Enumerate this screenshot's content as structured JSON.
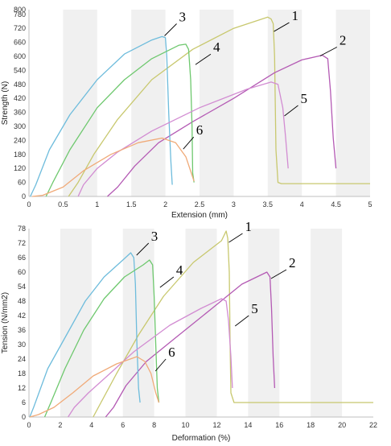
{
  "chart_data": [
    {
      "type": "line",
      "title": "",
      "xlabel": "Extension (mm)",
      "ylabel": "Strength (N)",
      "xlim": [
        0,
        5
      ],
      "ylim": [
        0,
        800
      ],
      "xticks": [
        "0",
        "0.5",
        "1",
        "1.5",
        "2",
        "2.5",
        "3",
        "3.5",
        "4",
        "4.5",
        "5"
      ],
      "yticks": [
        "0",
        "60",
        "120",
        "180",
        "240",
        "300",
        "360",
        "420",
        "480",
        "540",
        "600",
        "660",
        "720",
        "780",
        "800"
      ],
      "grid": "alternating vertical bands",
      "legend": "none",
      "series": [
        {
          "name": "1",
          "color": "#c8c86e",
          "points": [
            [
              0.58,
              0
            ],
            [
              0.72,
              60
            ],
            [
              0.95,
              180
            ],
            [
              1.3,
              330
            ],
            [
              1.8,
              500
            ],
            [
              2.4,
              630
            ],
            [
              3.0,
              720
            ],
            [
              3.5,
              768
            ],
            [
              3.55,
              760
            ],
            [
              3.58,
              740
            ],
            [
              3.6,
              600
            ],
            [
              3.62,
              200
            ],
            [
              3.65,
              60
            ],
            [
              3.7,
              55
            ],
            [
              5.0,
              55
            ]
          ]
        },
        {
          "name": "2",
          "color": "#b45ab4",
          "points": [
            [
              1.15,
              0
            ],
            [
              1.3,
              40
            ],
            [
              1.55,
              130
            ],
            [
              1.9,
              230
            ],
            [
              2.4,
              320
            ],
            [
              3.0,
              420
            ],
            [
              3.6,
              530
            ],
            [
              4.0,
              585
            ],
            [
              4.3,
              605
            ],
            [
              4.38,
              590
            ],
            [
              4.42,
              450
            ],
            [
              4.46,
              250
            ],
            [
              4.5,
              120
            ]
          ]
        },
        {
          "name": "3",
          "color": "#6ebcdc",
          "points": [
            [
              0.02,
              0
            ],
            [
              0.1,
              50
            ],
            [
              0.3,
              200
            ],
            [
              0.6,
              350
            ],
            [
              1.0,
              500
            ],
            [
              1.4,
              610
            ],
            [
              1.8,
              670
            ],
            [
              1.95,
              685
            ],
            [
              2.0,
              680
            ],
            [
              2.02,
              600
            ],
            [
              2.05,
              350
            ],
            [
              2.08,
              150
            ],
            [
              2.1,
              50
            ]
          ]
        },
        {
          "name": "4",
          "color": "#6ec86e",
          "points": [
            [
              0.25,
              0
            ],
            [
              0.35,
              60
            ],
            [
              0.6,
              200
            ],
            [
              1.0,
              380
            ],
            [
              1.4,
              500
            ],
            [
              1.8,
              590
            ],
            [
              2.2,
              648
            ],
            [
              2.3,
              652
            ],
            [
              2.34,
              630
            ],
            [
              2.37,
              500
            ],
            [
              2.39,
              300
            ],
            [
              2.4,
              100
            ],
            [
              2.42,
              60
            ]
          ]
        },
        {
          "name": "5",
          "color": "#d28cd2",
          "points": [
            [
              0.72,
              0
            ],
            [
              0.8,
              50
            ],
            [
              1.0,
              120
            ],
            [
              1.3,
              190
            ],
            [
              1.8,
              280
            ],
            [
              2.5,
              380
            ],
            [
              3.2,
              460
            ],
            [
              3.55,
              490
            ],
            [
              3.65,
              480
            ],
            [
              3.72,
              380
            ],
            [
              3.76,
              260
            ],
            [
              3.8,
              120
            ]
          ]
        },
        {
          "name": "6",
          "color": "#f0aa78",
          "points": [
            [
              0.05,
              0
            ],
            [
              0.2,
              5
            ],
            [
              0.5,
              40
            ],
            [
              0.8,
              110
            ],
            [
              1.2,
              180
            ],
            [
              1.6,
              230
            ],
            [
              1.95,
              250
            ],
            [
              2.15,
              230
            ],
            [
              2.3,
              170
            ],
            [
              2.38,
              100
            ],
            [
              2.42,
              65
            ]
          ]
        }
      ],
      "annotations": [
        {
          "text": "1",
          "x": 3.85,
          "y": 755
        },
        {
          "text": "2",
          "x": 4.55,
          "y": 650
        },
        {
          "text": "3",
          "x": 2.2,
          "y": 750
        },
        {
          "text": "4",
          "x": 2.7,
          "y": 620
        },
        {
          "text": "5",
          "x": 3.98,
          "y": 400
        },
        {
          "text": "6",
          "x": 2.45,
          "y": 265
        }
      ]
    },
    {
      "type": "line",
      "title": "",
      "xlabel": "Deformation (%)",
      "ylabel": "Tension (N/mm2)",
      "xlim": [
        0,
        22
      ],
      "ylim": [
        0,
        78
      ],
      "xticks": [
        "0",
        "2",
        "4",
        "6",
        "8",
        "10",
        "12",
        "14",
        "16",
        "18",
        "20",
        "22"
      ],
      "yticks": [
        "0",
        "6",
        "12",
        "18",
        "24",
        "30",
        "36",
        "42",
        "48",
        "54",
        "60",
        "66",
        "72",
        "78"
      ],
      "grid": "alternating vertical bands",
      "legend": "none",
      "series": [
        {
          "name": "1",
          "color": "#c8c86e",
          "points": [
            [
              4.1,
              0
            ],
            [
              4.6,
              6
            ],
            [
              5.6,
              18
            ],
            [
              7.0,
              34
            ],
            [
              8.6,
              50
            ],
            [
              10.5,
              64
            ],
            [
              12.3,
              73
            ],
            [
              12.6,
              77
            ],
            [
              12.7,
              74
            ],
            [
              12.8,
              60
            ],
            [
              12.85,
              30
            ],
            [
              12.9,
              10
            ],
            [
              13.1,
              6
            ],
            [
              22,
              6
            ]
          ]
        },
        {
          "name": "2",
          "color": "#b45ab4",
          "points": [
            [
              4.9,
              0
            ],
            [
              5.4,
              4
            ],
            [
              6.2,
              13
            ],
            [
              7.5,
              23
            ],
            [
              9.4,
              33
            ],
            [
              11.7,
              45
            ],
            [
              13.6,
              55
            ],
            [
              15.2,
              60
            ],
            [
              15.4,
              58
            ],
            [
              15.5,
              45
            ],
            [
              15.6,
              25
            ],
            [
              15.7,
              12
            ]
          ]
        },
        {
          "name": "3",
          "color": "#6ebcdc",
          "points": [
            [
              0.05,
              0
            ],
            [
              0.3,
              4
            ],
            [
              1.2,
              20
            ],
            [
              2.4,
              34
            ],
            [
              3.6,
              48
            ],
            [
              4.8,
              58
            ],
            [
              6.0,
              65
            ],
            [
              6.5,
              68
            ],
            [
              6.7,
              66
            ],
            [
              6.8,
              55
            ],
            [
              6.9,
              30
            ],
            [
              7.0,
              12
            ],
            [
              7.1,
              6
            ]
          ]
        },
        {
          "name": "4",
          "color": "#6ec86e",
          "points": [
            [
              1.0,
              0
            ],
            [
              1.4,
              6
            ],
            [
              2.3,
              20
            ],
            [
              3.5,
              36
            ],
            [
              4.8,
              49
            ],
            [
              6.1,
              58
            ],
            [
              7.3,
              63
            ],
            [
              7.7,
              65
            ],
            [
              7.9,
              63
            ],
            [
              8.0,
              50
            ],
            [
              8.1,
              30
            ],
            [
              8.2,
              12
            ],
            [
              8.3,
              6
            ]
          ]
        },
        {
          "name": "5",
          "color": "#d28cd2",
          "points": [
            [
              2.5,
              0
            ],
            [
              2.9,
              4
            ],
            [
              3.8,
              10
            ],
            [
              5.0,
              17
            ],
            [
              6.7,
              27
            ],
            [
              9.0,
              38
            ],
            [
              11.0,
              45
            ],
            [
              12.3,
              49
            ],
            [
              12.6,
              48
            ],
            [
              12.75,
              40
            ],
            [
              12.9,
              25
            ],
            [
              13.0,
              12
            ]
          ]
        },
        {
          "name": "6",
          "color": "#f0aa78",
          "points": [
            [
              0.05,
              0
            ],
            [
              0.6,
              1
            ],
            [
              1.6,
              4
            ],
            [
              2.8,
              10
            ],
            [
              4.1,
              17
            ],
            [
              5.6,
              22
            ],
            [
              6.9,
              25
            ],
            [
              7.4,
              23
            ],
            [
              7.8,
              18
            ],
            [
              8.1,
              10
            ],
            [
              8.3,
              6
            ]
          ]
        }
      ],
      "annotations": [
        {
          "text": "1",
          "x": 13.8,
          "y": 77
        },
        {
          "text": "2",
          "x": 16.6,
          "y": 62
        },
        {
          "text": "3",
          "x": 7.8,
          "y": 73
        },
        {
          "text": "4",
          "x": 9.4,
          "y": 59
        },
        {
          "text": "5",
          "x": 14.2,
          "y": 43
        },
        {
          "text": "6",
          "x": 8.9,
          "y": 25
        }
      ]
    }
  ]
}
